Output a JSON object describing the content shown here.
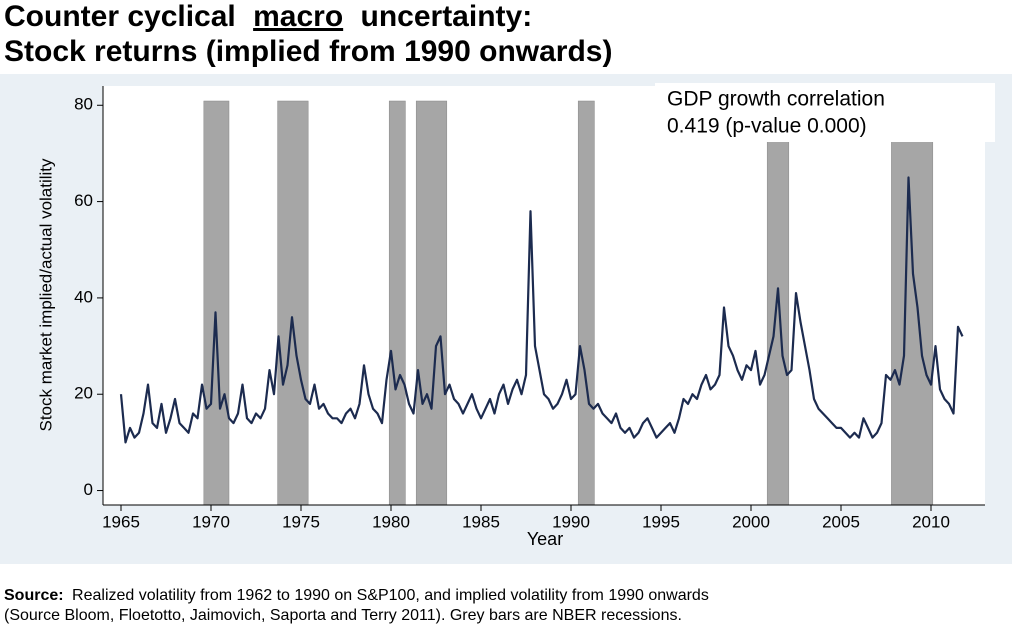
{
  "chart_data": {
    "type": "line",
    "title": [
      "Counter cyclical",
      "macro",
      "uncertainty:"
    ],
    "subtitle": "Stock returns (implied from 1990 onwards)",
    "x_label": "Year",
    "y_label": "Stock market implied/actual volatility",
    "annotation": [
      "GDP growth correlation",
      "0.419 (p-value 0.000)"
    ],
    "source_label": "Source:",
    "source": [
      "Realized volatility from 1962 to 1990 on S&P100, and implied volatility from 1990 onwards",
      "(Source Bloom, Floetotto, Jaimovich, Saporta and Terry 2011). Grey bars are NBER recessions."
    ],
    "xlim": [
      1964,
      2013
    ],
    "ylim": [
      -3,
      84
    ],
    "xticks": [
      1965,
      1970,
      1975,
      1980,
      1985,
      1990,
      1995,
      2000,
      2005,
      2010
    ],
    "yticks": [
      0,
      20,
      40,
      60,
      80
    ],
    "recessions": [
      [
        1969.6,
        1971.0
      ],
      [
        1973.7,
        1975.4
      ],
      [
        1979.9,
        1980.8
      ],
      [
        1981.4,
        1983.1
      ],
      [
        1990.4,
        1991.3
      ],
      [
        2000.9,
        2002.1
      ],
      [
        2007.8,
        2010.1
      ]
    ],
    "recession_color": "#a6a6a6",
    "series": [
      {
        "color": "#1c2b4f",
        "x": [
          1965,
          1965.25,
          1965.5,
          1965.75,
          1966,
          1966.25,
          1966.5,
          1966.75,
          1967,
          1967.25,
          1967.5,
          1967.75,
          1968,
          1968.25,
          1968.5,
          1968.75,
          1969,
          1969.25,
          1969.5,
          1969.75,
          1970,
          1970.25,
          1970.5,
          1970.75,
          1971,
          1971.25,
          1971.5,
          1971.75,
          1972,
          1972.25,
          1972.5,
          1972.75,
          1973,
          1973.25,
          1973.5,
          1973.75,
          1974,
          1974.25,
          1974.5,
          1974.75,
          1975,
          1975.25,
          1975.5,
          1975.75,
          1976,
          1976.25,
          1976.5,
          1976.75,
          1977,
          1977.25,
          1977.5,
          1977.75,
          1978,
          1978.25,
          1978.5,
          1978.75,
          1979,
          1979.25,
          1979.5,
          1979.75,
          1980,
          1980.25,
          1980.5,
          1980.75,
          1981,
          1981.25,
          1981.5,
          1981.75,
          1982,
          1982.25,
          1982.5,
          1982.75,
          1983,
          1983.25,
          1983.5,
          1983.75,
          1984,
          1984.25,
          1984.5,
          1984.75,
          1985,
          1985.25,
          1985.5,
          1985.75,
          1986,
          1986.25,
          1986.5,
          1986.75,
          1987,
          1987.25,
          1987.5,
          1987.75,
          1988,
          1988.25,
          1988.5,
          1988.75,
          1989,
          1989.25,
          1989.5,
          1989.75,
          1990,
          1990.25,
          1990.5,
          1990.75,
          1991,
          1991.25,
          1991.5,
          1991.75,
          1992,
          1992.25,
          1992.5,
          1992.75,
          1993,
          1993.25,
          1993.5,
          1993.75,
          1994,
          1994.25,
          1994.5,
          1994.75,
          1995,
          1995.25,
          1995.5,
          1995.75,
          1996,
          1996.25,
          1996.5,
          1996.75,
          1997,
          1997.25,
          1997.5,
          1997.75,
          1998,
          1998.25,
          1998.5,
          1998.75,
          1999,
          1999.25,
          1999.5,
          1999.75,
          2000,
          2000.25,
          2000.5,
          2000.75,
          2001,
          2001.25,
          2001.5,
          2001.75,
          2002,
          2002.25,
          2002.5,
          2002.75,
          2003,
          2003.25,
          2003.5,
          2003.75,
          2004,
          2004.25,
          2004.5,
          2004.75,
          2005,
          2005.25,
          2005.5,
          2005.75,
          2006,
          2006.25,
          2006.5,
          2006.75,
          2007,
          2007.25,
          2007.5,
          2007.75,
          2008,
          2008.25,
          2008.5,
          2008.75,
          2009,
          2009.25,
          2009.5,
          2009.75,
          2010,
          2010.25,
          2010.5,
          2010.75,
          2011,
          2011.25,
          2011.5,
          2011.75
        ],
        "values": [
          20,
          10,
          13,
          11,
          12,
          16,
          22,
          14,
          13,
          18,
          12,
          15,
          19,
          14,
          13,
          12,
          16,
          15,
          22,
          17,
          18,
          37,
          17,
          20,
          15,
          14,
          16,
          22,
          15,
          14,
          16,
          15,
          17,
          25,
          20,
          32,
          22,
          26,
          36,
          28,
          23,
          19,
          18,
          22,
          17,
          18,
          16,
          15,
          15,
          14,
          16,
          17,
          15,
          18,
          26,
          20,
          17,
          16,
          14,
          23,
          29,
          21,
          24,
          22,
          18,
          16,
          25,
          18,
          20,
          17,
          30,
          32,
          20,
          22,
          19,
          18,
          16,
          18,
          20,
          17,
          15,
          17,
          19,
          16,
          20,
          22,
          18,
          21,
          23,
          20,
          24,
          58,
          30,
          25,
          20,
          19,
          17,
          18,
          20,
          23,
          19,
          20,
          30,
          25,
          18,
          17,
          18,
          16,
          15,
          14,
          16,
          13,
          12,
          13,
          11,
          12,
          14,
          15,
          13,
          11,
          12,
          13,
          14,
          12,
          15,
          19,
          18,
          20,
          19,
          22,
          24,
          21,
          22,
          24,
          38,
          30,
          28,
          25,
          23,
          26,
          25,
          29,
          22,
          24,
          28,
          32,
          42,
          28,
          24,
          25,
          41,
          35,
          30,
          25,
          19,
          17,
          16,
          15,
          14,
          13,
          13,
          12,
          11,
          12,
          11,
          15,
          13,
          11,
          12,
          14,
          24,
          23,
          25,
          22,
          28,
          65,
          45,
          38,
          28,
          24,
          22,
          30,
          21,
          19,
          18,
          16,
          34,
          32
        ]
      }
    ]
  }
}
